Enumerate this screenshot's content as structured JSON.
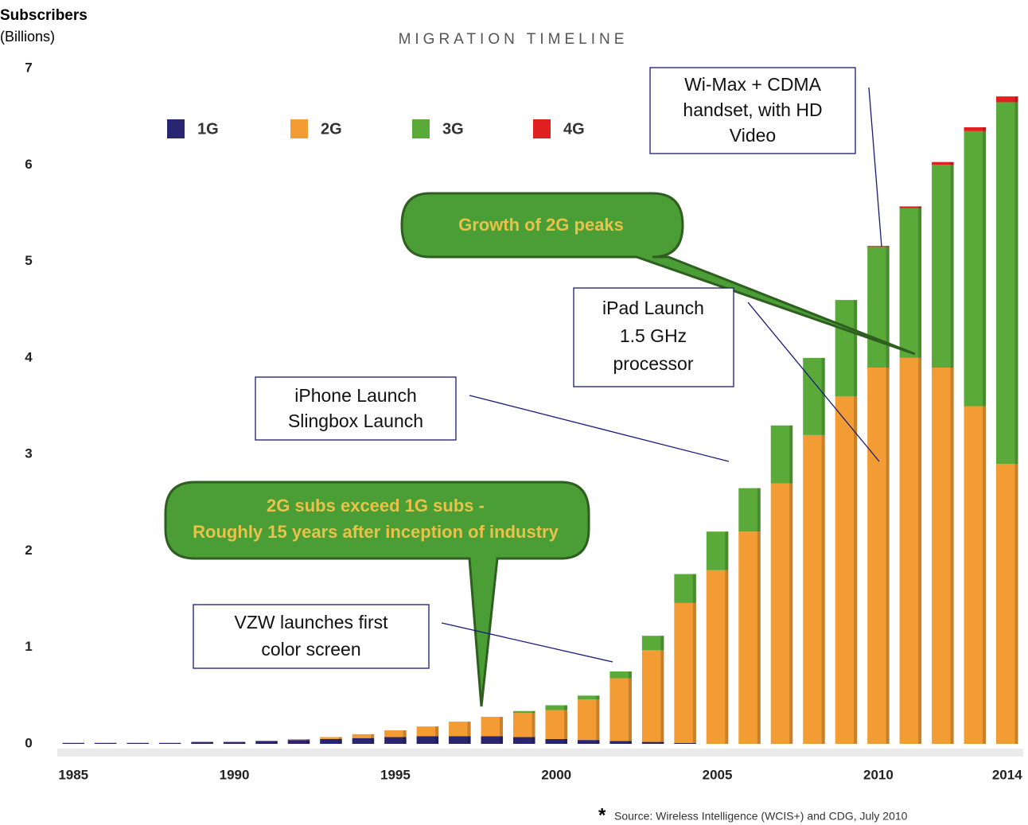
{
  "chart_data": {
    "type": "bar",
    "stacked": true,
    "title": "MIGRATION TIMELINE",
    "y_label": "Subscribers",
    "y_unit": "(Billions)",
    "x": [
      1985,
      1986,
      1987,
      1988,
      1989,
      1990,
      1991,
      1992,
      1993,
      1994,
      1995,
      1996,
      1997,
      1998,
      1999,
      2000,
      2001,
      2002,
      2003,
      2004,
      2005,
      2006,
      2007,
      2008,
      2009,
      2010,
      2011,
      2012,
      2013,
      2014
    ],
    "xlim": [
      1984.5,
      2014.5
    ],
    "xticks": [
      1985,
      1990,
      1995,
      2000,
      2005,
      2010,
      2014
    ],
    "ylim": [
      0,
      7
    ],
    "yticks": [
      0,
      1,
      2,
      3,
      4,
      5,
      6,
      7
    ],
    "series": [
      {
        "name": "1G",
        "color": "#2a2570",
        "values": [
          0.01,
          0.01,
          0.01,
          0.01,
          0.02,
          0.02,
          0.03,
          0.04,
          0.05,
          0.06,
          0.07,
          0.08,
          0.08,
          0.08,
          0.07,
          0.05,
          0.04,
          0.03,
          0.02,
          0.01,
          0,
          0,
          0,
          0,
          0,
          0,
          0,
          0,
          0,
          0
        ]
      },
      {
        "name": "2G",
        "color": "#f39c33",
        "values": [
          0,
          0,
          0,
          0,
          0,
          0,
          0,
          0.01,
          0.02,
          0.04,
          0.07,
          0.1,
          0.15,
          0.2,
          0.25,
          0.3,
          0.42,
          0.65,
          0.95,
          1.45,
          1.8,
          2.2,
          2.7,
          3.2,
          3.6,
          3.9,
          4.0,
          3.9,
          3.5,
          2.9
        ]
      },
      {
        "name": "3G",
        "color": "#5aaa3a",
        "values": [
          0,
          0,
          0,
          0,
          0,
          0,
          0,
          0,
          0,
          0,
          0,
          0,
          0,
          0,
          0.02,
          0.05,
          0.04,
          0.07,
          0.15,
          0.3,
          0.4,
          0.45,
          0.6,
          0.8,
          1.0,
          1.25,
          1.55,
          2.1,
          2.85,
          3.75
        ]
      },
      {
        "name": "4G",
        "color": "#e02020",
        "values": [
          0,
          0,
          0,
          0,
          0,
          0,
          0,
          0,
          0,
          0,
          0,
          0,
          0,
          0,
          0,
          0,
          0,
          0,
          0,
          0,
          0,
          0,
          0,
          0,
          0,
          0.01,
          0.02,
          0.03,
          0.04,
          0.06
        ]
      }
    ],
    "legend": "top-left",
    "annotations": [
      {
        "lines": [
          "Wi-Max + CDMA",
          "handset, with HD",
          "Video"
        ]
      },
      {
        "lines": [
          "Growth of 2G peaks"
        ]
      },
      {
        "lines": [
          "iPad Launch",
          "1.5 GHz",
          "processor"
        ]
      },
      {
        "lines": [
          "iPhone Launch",
          "Slingbox Launch"
        ]
      },
      {
        "lines": [
          "2G subs exceed 1G subs -",
          "Roughly 15 years after inception of industry"
        ]
      },
      {
        "lines": [
          "VZW launches first",
          "color screen"
        ]
      }
    ],
    "source_mark": "*",
    "source": "Source: Wireless Intelligence (WCIS+) and CDG, July 2010"
  }
}
